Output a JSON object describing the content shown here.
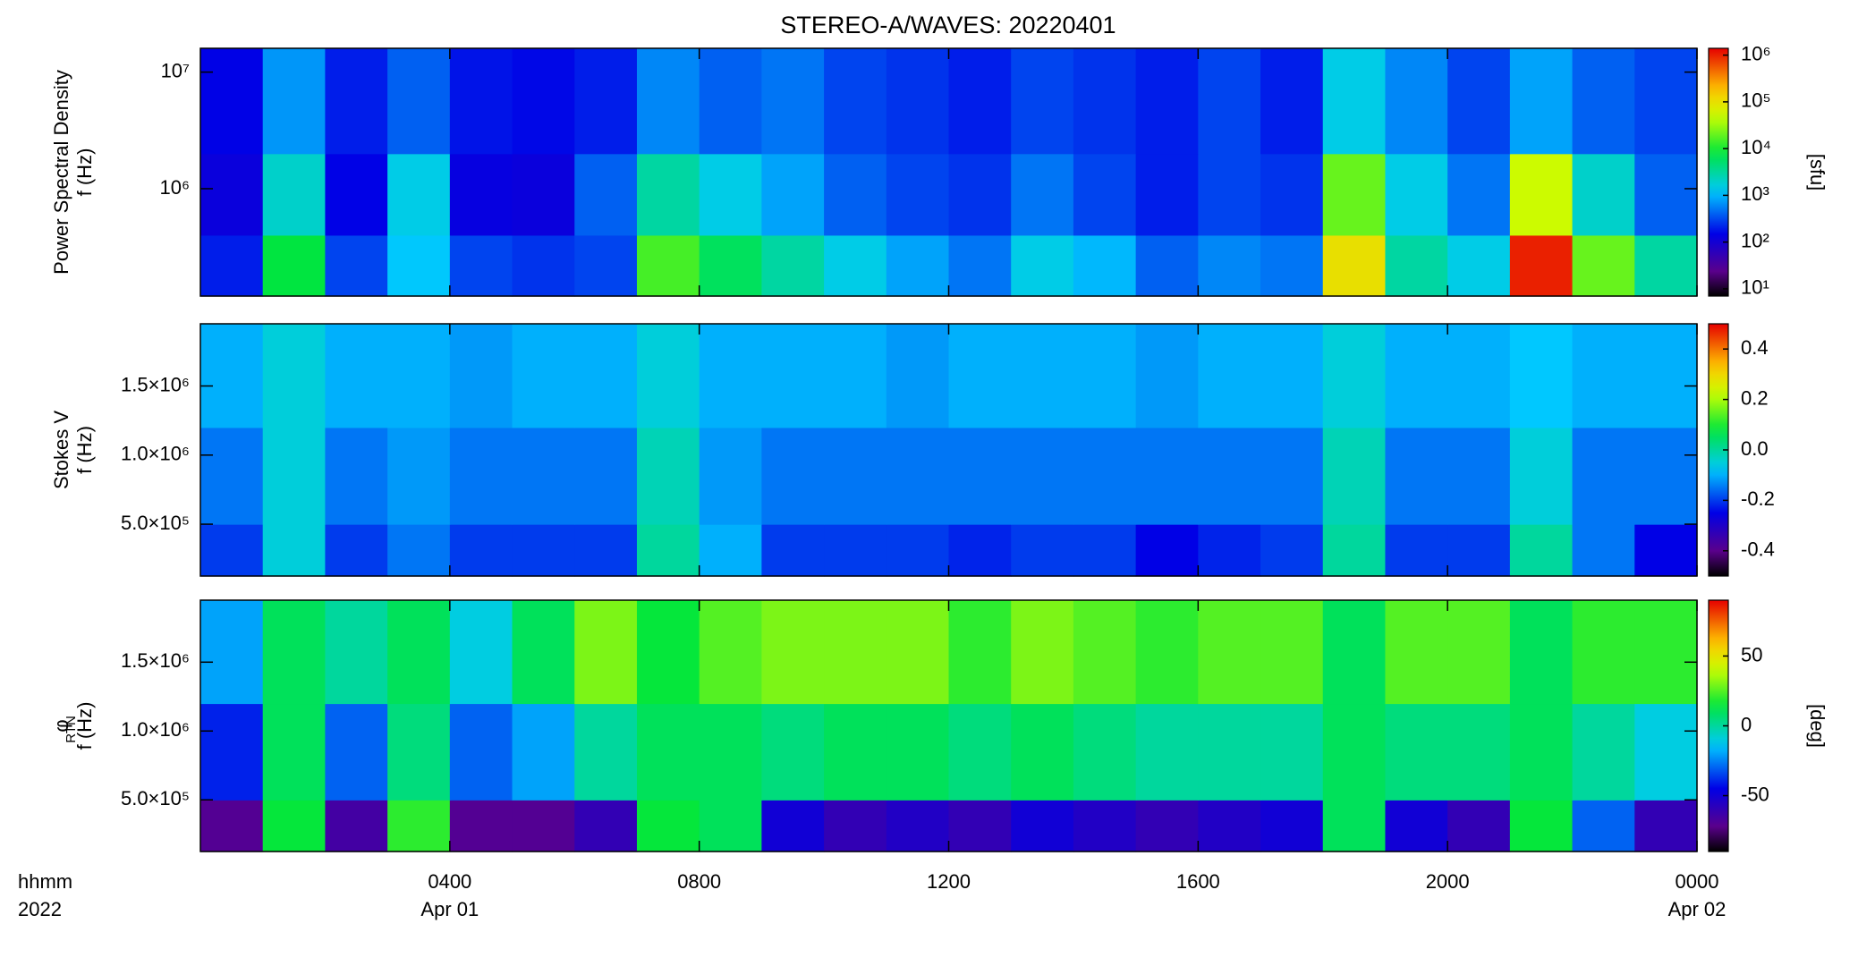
{
  "chart_data": [
    {
      "type": "heatmap",
      "title": "STEREO-A/WAVES: 20220401",
      "ylabel": [
        "Power Spectral Density",
        "f (Hz)"
      ],
      "ylog": true,
      "ylim": [
        120000,
        16000000
      ],
      "yticks": [
        {
          "value": 1000000,
          "label": "10⁶"
        },
        {
          "value": 10000000,
          "label": "10⁷"
        }
      ],
      "xbins": [
        0,
        1,
        2,
        3,
        4,
        5,
        6,
        7,
        8,
        9,
        10,
        11,
        12,
        13,
        14,
        15,
        16,
        17,
        18,
        19,
        20,
        21,
        22,
        23,
        24
      ],
      "ybins": [
        120000,
        400000,
        2000000,
        16000000
      ],
      "z": [
        [
          200,
          8000,
          300,
          1200,
          300,
          250,
          300,
          15000,
          6000,
          3000,
          1500,
          800,
          500,
          1500,
          1000,
          400,
          600,
          500,
          100000,
          3000,
          1500,
          1000000,
          20000,
          3000
        ],
        [
          120,
          2000,
          150,
          1500,
          130,
          120,
          400,
          3000,
          1500,
          800,
          400,
          300,
          250,
          500,
          300,
          200,
          300,
          250,
          20000,
          1500,
          500,
          50000,
          2000,
          400
        ],
        [
          150,
          700,
          200,
          400,
          180,
          160,
          200,
          600,
          400,
          500,
          300,
          250,
          200,
          300,
          250,
          200,
          300,
          200,
          1500,
          600,
          300,
          800,
          400,
          300
        ]
      ],
      "colormap": "rainbow",
      "colorbar": {
        "log": true,
        "clim": [
          7,
          1400000
        ],
        "label": "[sfu]",
        "ticks": [
          {
            "value": 10,
            "label": "10¹"
          },
          {
            "value": 100,
            "label": "10²"
          },
          {
            "value": 1000,
            "label": "10³"
          },
          {
            "value": 10000,
            "label": "10⁴"
          },
          {
            "value": 100000,
            "label": "10⁵"
          },
          {
            "value": 1000000,
            "label": "10⁶"
          }
        ]
      }
    },
    {
      "type": "heatmap",
      "ylabel": [
        "Stokes V",
        "f (Hz)"
      ],
      "ylog": false,
      "ylim": [
        125000,
        1950000
      ],
      "yticks": [
        {
          "value": 500000,
          "label": "5.0×10⁵"
        },
        {
          "value": 1000000,
          "label": "1.0×10⁶"
        },
        {
          "value": 1500000,
          "label": "1.5×10⁶"
        }
      ],
      "xbins": [
        0,
        1,
        2,
        3,
        4,
        5,
        6,
        7,
        8,
        9,
        10,
        11,
        12,
        13,
        14,
        15,
        16,
        17,
        18,
        19,
        20,
        21,
        22,
        23,
        24
      ],
      "ybins": [
        125000,
        500000,
        1200000,
        1950000
      ],
      "z": [
        [
          -0.2,
          -0.05,
          -0.2,
          -0.15,
          -0.2,
          -0.2,
          -0.2,
          0,
          -0.1,
          -0.2,
          -0.2,
          -0.2,
          -0.22,
          -0.2,
          -0.2,
          -0.25,
          -0.22,
          -0.2,
          0,
          -0.2,
          -0.2,
          0,
          -0.15,
          -0.25
        ],
        [
          -0.15,
          -0.05,
          -0.15,
          -0.12,
          -0.15,
          -0.15,
          -0.15,
          -0.02,
          -0.12,
          -0.15,
          -0.15,
          -0.15,
          -0.15,
          -0.15,
          -0.15,
          -0.15,
          -0.15,
          -0.15,
          -0.02,
          -0.15,
          -0.15,
          -0.05,
          -0.15,
          -0.15
        ],
        [
          -0.1,
          -0.05,
          -0.1,
          -0.1,
          -0.12,
          -0.1,
          -0.1,
          -0.05,
          -0.1,
          -0.1,
          -0.1,
          -0.12,
          -0.1,
          -0.1,
          -0.1,
          -0.12,
          -0.1,
          -0.1,
          -0.05,
          -0.1,
          -0.1,
          -0.08,
          -0.1,
          -0.1
        ]
      ],
      "colormap": "rainbow",
      "colorbar": {
        "log": false,
        "clim": [
          -0.5,
          0.5
        ],
        "ticks": [
          -0.4,
          -0.2,
          {
            "value": 0,
            "label": "0.0"
          },
          0.2,
          0.4
        ]
      }
    },
    {
      "type": "heatmap",
      "ylabel": [
        "φ",
        "f (Hz)"
      ],
      "ylabel_sub": "RTN",
      "ylog": false,
      "ylim": [
        125000,
        1950000
      ],
      "yticks": [
        {
          "value": 500000,
          "label": "5.0×10⁵"
        },
        {
          "value": 1000000,
          "label": "1.0×10⁶"
        },
        {
          "value": 1500000,
          "label": "1.5×10⁶"
        }
      ],
      "xbins": [
        0,
        1,
        2,
        3,
        4,
        5,
        6,
        7,
        8,
        9,
        10,
        11,
        12,
        13,
        14,
        15,
        16,
        17,
        18,
        19,
        20,
        21,
        22,
        23,
        24
      ],
      "ybins": [
        125000,
        500000,
        1200000,
        1950000
      ],
      "z": [
        [
          -70,
          15,
          -65,
          20,
          -70,
          -70,
          -60,
          15,
          10,
          -50,
          -60,
          -55,
          -60,
          -50,
          -55,
          -60,
          -55,
          -50,
          10,
          -50,
          -60,
          15,
          -30,
          -60
        ],
        [
          -40,
          10,
          -30,
          5,
          -30,
          -20,
          0,
          10,
          10,
          5,
          10,
          10,
          5,
          10,
          5,
          0,
          0,
          0,
          10,
          5,
          5,
          10,
          0,
          -10
        ],
        [
          -20,
          10,
          0,
          10,
          -10,
          10,
          30,
          15,
          25,
          30,
          30,
          30,
          20,
          30,
          25,
          20,
          25,
          25,
          10,
          25,
          25,
          10,
          20,
          20
        ]
      ],
      "colormap": "rainbow",
      "colorbar": {
        "log": false,
        "clim": [
          -90,
          90
        ],
        "label": "[deg]",
        "ticks": [
          -50,
          0,
          50
        ]
      },
      "xlabel": "hhmm",
      "xyear": "2022",
      "xlim": [
        0,
        24
      ],
      "xticks": [
        {
          "value": 4,
          "label": "0400",
          "date": "Apr 01"
        },
        {
          "value": 8,
          "label": "0800"
        },
        {
          "value": 12,
          "label": "1200"
        },
        {
          "value": 16,
          "label": "1600"
        },
        {
          "value": 20,
          "label": "2000"
        },
        {
          "value": 24,
          "label": "0000",
          "date": "Apr 02"
        }
      ]
    }
  ]
}
